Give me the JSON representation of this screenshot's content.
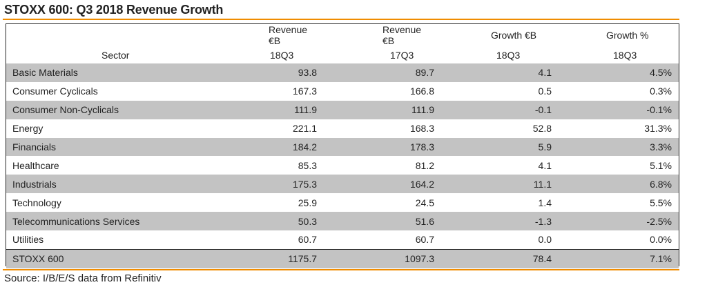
{
  "title": "STOXX 600: Q3 2018 Revenue Growth",
  "colors": {
    "accent_rule": "#f08c00",
    "row_shade": "#c3c3c3"
  },
  "headers": {
    "row1": [
      "",
      "Revenue €B",
      "Revenue €B",
      "Growth €B",
      "Growth %"
    ],
    "row2": [
      "Sector",
      "18Q3",
      "17Q3",
      "18Q3",
      "18Q3"
    ]
  },
  "rows": [
    {
      "sector": "Basic Materials",
      "rev18": "93.8",
      "rev17": "89.7",
      "growth_eur": "4.1",
      "growth_pct": "4.5%"
    },
    {
      "sector": "Consumer Cyclicals",
      "rev18": "167.3",
      "rev17": "166.8",
      "growth_eur": "0.5",
      "growth_pct": "0.3%"
    },
    {
      "sector": "Consumer Non-Cyclicals",
      "rev18": "111.9",
      "rev17": "111.9",
      "growth_eur": "-0.1",
      "growth_pct": "-0.1%"
    },
    {
      "sector": "Energy",
      "rev18": "221.1",
      "rev17": "168.3",
      "growth_eur": "52.8",
      "growth_pct": "31.3%"
    },
    {
      "sector": "Financials",
      "rev18": "184.2",
      "rev17": "178.3",
      "growth_eur": "5.9",
      "growth_pct": "3.3%"
    },
    {
      "sector": "Healthcare",
      "rev18": "85.3",
      "rev17": "81.2",
      "growth_eur": "4.1",
      "growth_pct": "5.1%"
    },
    {
      "sector": "Industrials",
      "rev18": "175.3",
      "rev17": "164.2",
      "growth_eur": "11.1",
      "growth_pct": "6.8%"
    },
    {
      "sector": "Technology",
      "rev18": "25.9",
      "rev17": "24.5",
      "growth_eur": "1.4",
      "growth_pct": "5.5%"
    },
    {
      "sector": "Telecommunications Services",
      "rev18": "50.3",
      "rev17": "51.6",
      "growth_eur": "-1.3",
      "growth_pct": "-2.5%"
    },
    {
      "sector": "Utilities",
      "rev18": "60.7",
      "rev17": "60.7",
      "growth_eur": "0.0",
      "growth_pct": "0.0%"
    },
    {
      "sector": "STOXX 600",
      "rev18": "1175.7",
      "rev17": "1097.3",
      "growth_eur": "78.4",
      "growth_pct": "7.1%"
    }
  ],
  "source": "Source: I/B/E/S data from Refinitiv"
}
